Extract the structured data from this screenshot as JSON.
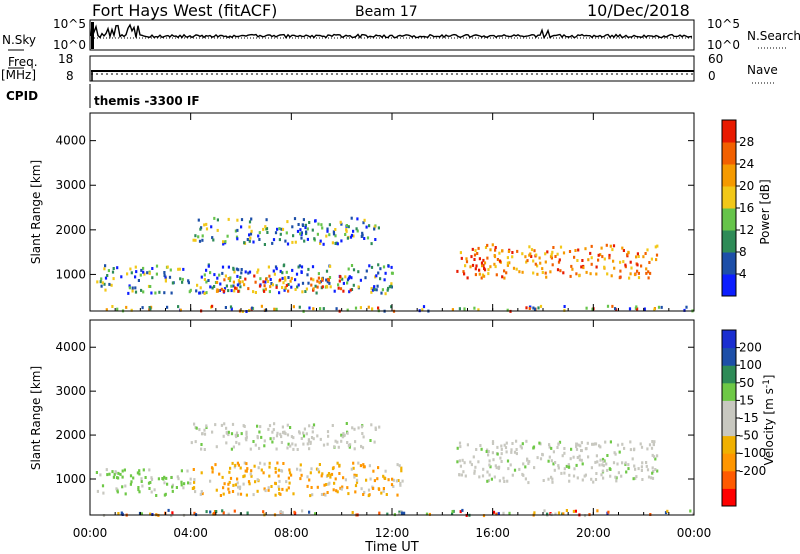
{
  "header": {
    "radar": "Fort Hays West (fitACF)",
    "beam": "Beam 17",
    "date": "10/Dec/2018"
  },
  "top_panels": {
    "nsky_label": "N.Sky",
    "nsky_ticks": [
      "10^5",
      "10^0"
    ],
    "nsearch_label": "N.Search",
    "nsearch_ticks": [
      "10^5",
      "10^0"
    ],
    "freq_label": "Freq.",
    "freq_unit": "[MHz]",
    "freq_ticks": [
      "18",
      "8"
    ],
    "nave_label": "Nave",
    "nave_ticks": [
      "60",
      "0"
    ],
    "cpid_label": "CPID",
    "cpid_text": "themis -3300 IF"
  },
  "colors": {
    "power_scale": [
      "#0c1eff",
      "#1d4fa8",
      "#2e8b57",
      "#66c44a",
      "#f2c818",
      "#f59a00",
      "#f26000",
      "#e81a00"
    ],
    "velocity_scale": [
      "#ff0000",
      "#ff5a00",
      "#ff9600",
      "#f0b000",
      "#c8c8c0",
      "#c8c8c0",
      "#6ec846",
      "#2e8b57",
      "#1d4fa8",
      "#1a2ed0"
    ]
  },
  "chart_data": [
    {
      "type": "heatmap",
      "title": "",
      "xlabel": "",
      "ylabel": "Slant Range [km]",
      "x_ticks": [
        "00:00",
        "04:00",
        "08:00",
        "12:00",
        "16:00",
        "20:00",
        "00:00"
      ],
      "x_range_hours": [
        0,
        24
      ],
      "ylim": [
        180,
        4620
      ],
      "y_ticks": [
        1000,
        2000,
        3000,
        4000
      ],
      "grid": false,
      "colorbar": {
        "label": "Power [dB]",
        "ticks": [
          4,
          8,
          12,
          16,
          20,
          24,
          28
        ],
        "range": [
          0,
          32
        ]
      },
      "echo_regions": [
        {
          "t_start": 0.2,
          "t_end": 12.0,
          "range_low": 600,
          "range_high": 1250,
          "level": "low"
        },
        {
          "t_start": 5.0,
          "t_end": 10.5,
          "range_low": 650,
          "range_high": 1000,
          "level": "high"
        },
        {
          "t_start": 4.0,
          "t_end": 11.5,
          "range_low": 1700,
          "range_high": 2300,
          "level": "low"
        },
        {
          "t_start": 14.5,
          "t_end": 22.5,
          "range_low": 950,
          "range_high": 1700,
          "level": "high"
        },
        {
          "t_start": 0.5,
          "t_end": 24.0,
          "range_low": 200,
          "range_high": 320,
          "level": "mixed"
        }
      ]
    },
    {
      "type": "heatmap",
      "title": "",
      "xlabel": "Time UT",
      "ylabel": "Slant Range [km]",
      "x_ticks": [
        "00:00",
        "04:00",
        "08:00",
        "12:00",
        "16:00",
        "20:00",
        "00:00"
      ],
      "x_range_hours": [
        0,
        24
      ],
      "ylim": [
        180,
        4620
      ],
      "y_ticks": [
        1000,
        2000,
        3000,
        4000
      ],
      "grid": false,
      "colorbar": {
        "label": "Velocity [m s^-1]",
        "ticks": [
          200,
          100,
          50,
          15,
          -15,
          -50,
          -100,
          -200
        ]
      },
      "echo_regions": [
        {
          "t_start": 0.2,
          "t_end": 4.0,
          "range_low": 650,
          "range_high": 1250,
          "velocity": "toward"
        },
        {
          "t_start": 4.0,
          "t_end": 12.5,
          "range_low": 650,
          "range_high": 1400,
          "velocity": "away"
        },
        {
          "t_start": 4.0,
          "t_end": 11.5,
          "range_low": 1700,
          "range_high": 2300,
          "velocity": "near-zero"
        },
        {
          "t_start": 14.5,
          "t_end": 22.5,
          "range_low": 950,
          "range_high": 1900,
          "velocity": "near-zero"
        },
        {
          "t_start": 0.5,
          "t_end": 24.0,
          "range_low": 200,
          "range_high": 320,
          "velocity": "mixed"
        }
      ]
    }
  ]
}
